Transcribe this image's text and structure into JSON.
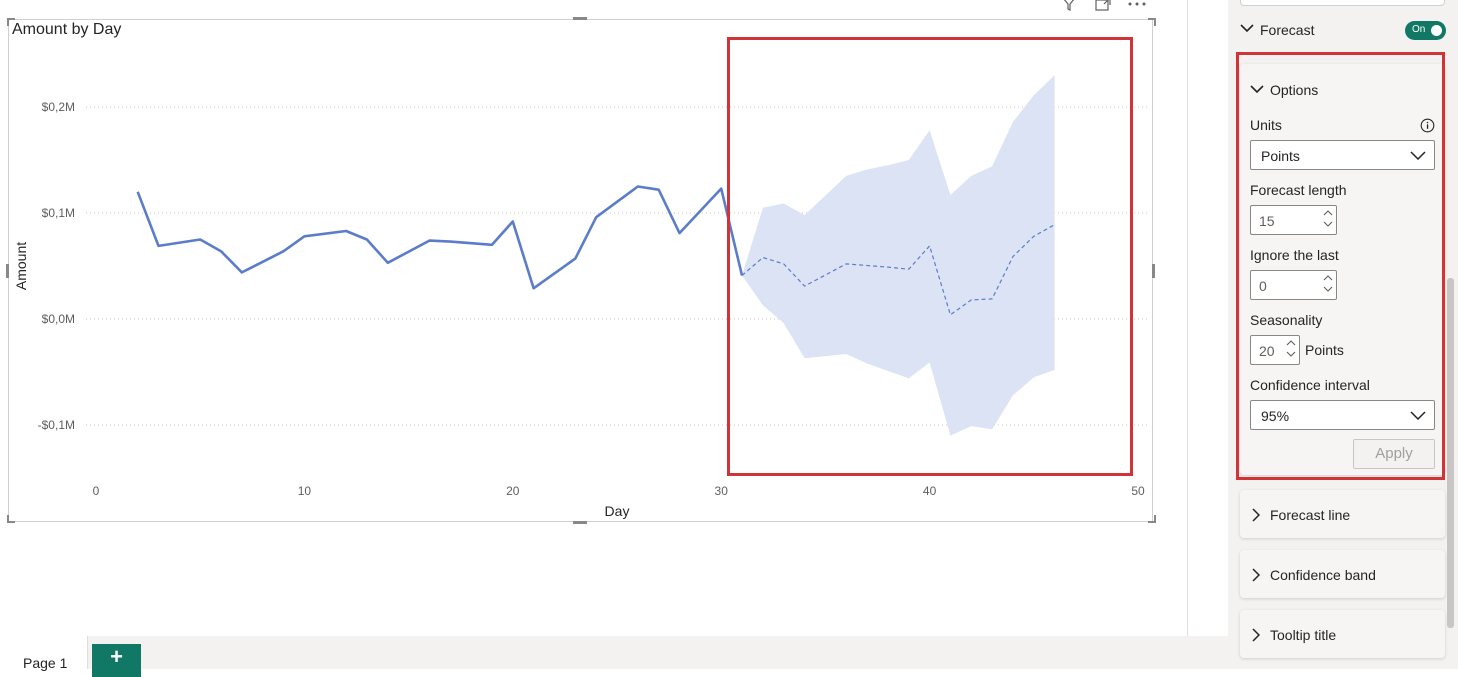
{
  "visual": {
    "title": "Amount by Day",
    "toolbar_icons": [
      "filter-icon",
      "focus-mode-icon",
      "more-options-icon"
    ]
  },
  "chart_data": {
    "type": "line",
    "title": "Amount by Day",
    "xlabel": "Day",
    "ylabel": "Amount",
    "xlim": [
      0,
      50
    ],
    "ylim": [
      -0.15,
      0.25
    ],
    "x_ticks": [
      "0",
      "10",
      "20",
      "30",
      "40",
      "50"
    ],
    "y_ticks": [
      {
        "value": 0.2,
        "label": "$0,2M"
      },
      {
        "value": 0.1,
        "label": "$0,1M"
      },
      {
        "value": 0.0,
        "label": "$0,0M"
      },
      {
        "value": -0.1,
        "label": "-$0,1M"
      }
    ],
    "grid": true,
    "series": [
      {
        "style": "solid",
        "color": "#5b7dc9",
        "x": [
          2,
          3,
          5,
          6,
          7,
          9,
          10,
          12,
          13,
          14,
          16,
          17,
          19,
          20,
          21,
          23,
          24,
          26,
          27,
          28,
          30,
          31
        ],
        "y": [
          0.12,
          0.069,
          0.075,
          0.064,
          0.044,
          0.064,
          0.078,
          0.083,
          0.075,
          0.053,
          0.074,
          0.073,
          0.07,
          0.092,
          0.029,
          0.057,
          0.096,
          0.125,
          0.122,
          0.081,
          0.123,
          0.041
        ]
      },
      {
        "style": "dashed",
        "color": "#5b7dc9",
        "x": [
          31,
          32,
          33,
          34,
          36,
          38,
          39,
          40,
          41,
          42,
          43,
          44,
          45,
          46
        ],
        "y": [
          0.041,
          0.058,
          0.052,
          0.031,
          0.052,
          0.049,
          0.047,
          0.069,
          0.004,
          0.018,
          0.019,
          0.059,
          0.078,
          0.089
        ]
      }
    ],
    "confidence_band": {
      "color": "#dce3f5",
      "x": [
        31,
        32,
        33,
        34,
        36,
        37,
        38,
        39,
        40,
        41,
        42,
        43,
        44,
        45,
        46
      ],
      "upper": [
        0.041,
        0.105,
        0.109,
        0.098,
        0.135,
        0.141,
        0.145,
        0.15,
        0.178,
        0.117,
        0.135,
        0.144,
        0.186,
        0.211,
        0.23
      ],
      "lower": [
        0.041,
        0.013,
        -0.004,
        -0.037,
        -0.033,
        -0.042,
        -0.049,
        -0.056,
        -0.041,
        -0.11,
        -0.101,
        -0.104,
        -0.072,
        -0.055,
        -0.048
      ]
    }
  },
  "pages": {
    "tab_label": "Page 1",
    "add_label": "+"
  },
  "pane": {
    "forecast_label": "Forecast",
    "toggle_text": "On",
    "options": {
      "header": "Options",
      "units_label": "Units",
      "units_value": "Points",
      "forecast_length_label": "Forecast length",
      "forecast_length_value": "15",
      "ignore_last_label": "Ignore the last",
      "ignore_last_value": "0",
      "seasonality_label": "Seasonality",
      "seasonality_value": "20",
      "seasonality_unit": "Points",
      "confidence_label": "Confidence interval",
      "confidence_value": "95%",
      "apply_label": "Apply"
    },
    "sections": [
      "Forecast line",
      "Confidence band",
      "Tooltip title"
    ]
  },
  "colors": {
    "accent": "#117865",
    "line": "#5b7dc9",
    "band": "#dce3f5",
    "highlight": "#d13438"
  }
}
